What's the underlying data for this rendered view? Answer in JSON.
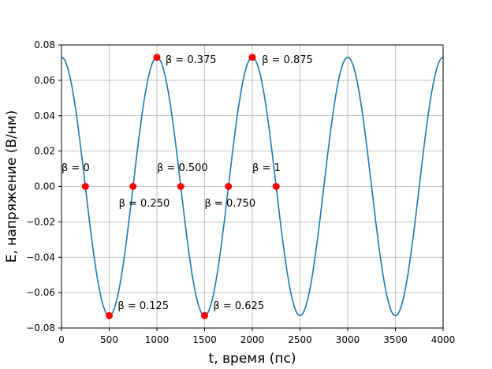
{
  "chart_data": {
    "type": "line",
    "xlabel": "t, время (пс)",
    "ylabel": "E, напряжение (В/нм)",
    "xlim": [
      0,
      4000
    ],
    "ylim": [
      -0.08,
      0.08
    ],
    "xticks": [
      0,
      500,
      1000,
      1500,
      2000,
      2500,
      3000,
      3500,
      4000
    ],
    "yticks": [
      -0.08,
      -0.06,
      -0.04,
      -0.02,
      0.0,
      0.02,
      0.04,
      0.06,
      0.08
    ],
    "xtick_labels": [
      "0",
      "500",
      "1000",
      "1500",
      "2000",
      "2500",
      "3000",
      "3500",
      "4000"
    ],
    "ytick_labels": [
      "−0.08",
      "−0.06",
      "−0.04",
      "−0.02",
      "0.00",
      "0.02",
      "0.04",
      "0.06",
      "0.08"
    ],
    "grid": true,
    "series": [
      {
        "amplitude": 0.073,
        "period": 1000,
        "color": "#1f77b4"
      }
    ],
    "points": {
      "x": [
        250,
        500,
        750,
        1000,
        1250,
        1500,
        1750,
        2000,
        2250
      ],
      "y": [
        0.0,
        -0.073,
        0.0,
        0.073,
        0.0,
        -0.073,
        0.0,
        0.073,
        0.0
      ],
      "color": "#ff0000"
    },
    "annotations": [
      {
        "text": "β = 0",
        "x": 0,
        "y": 0.0105,
        "anchor": "start"
      },
      {
        "text": "β = 0.125",
        "x": 590,
        "y": -0.0675,
        "anchor": "start"
      },
      {
        "text": "β = 0.250",
        "x": 600,
        "y": -0.0095,
        "anchor": "start"
      },
      {
        "text": "β = 0.375",
        "x": 1090,
        "y": 0.0715,
        "anchor": "start"
      },
      {
        "text": "β = 0.500",
        "x": 1000,
        "y": 0.0105,
        "anchor": "start"
      },
      {
        "text": "β = 0.625",
        "x": 1590,
        "y": -0.0675,
        "anchor": "start"
      },
      {
        "text": "β = 0.750",
        "x": 1500,
        "y": -0.0095,
        "anchor": "start"
      },
      {
        "text": "β = 0.875",
        "x": 2100,
        "y": 0.0715,
        "anchor": "start"
      },
      {
        "text": "β = 1",
        "x": 2000,
        "y": 0.0105,
        "anchor": "start"
      }
    ]
  }
}
